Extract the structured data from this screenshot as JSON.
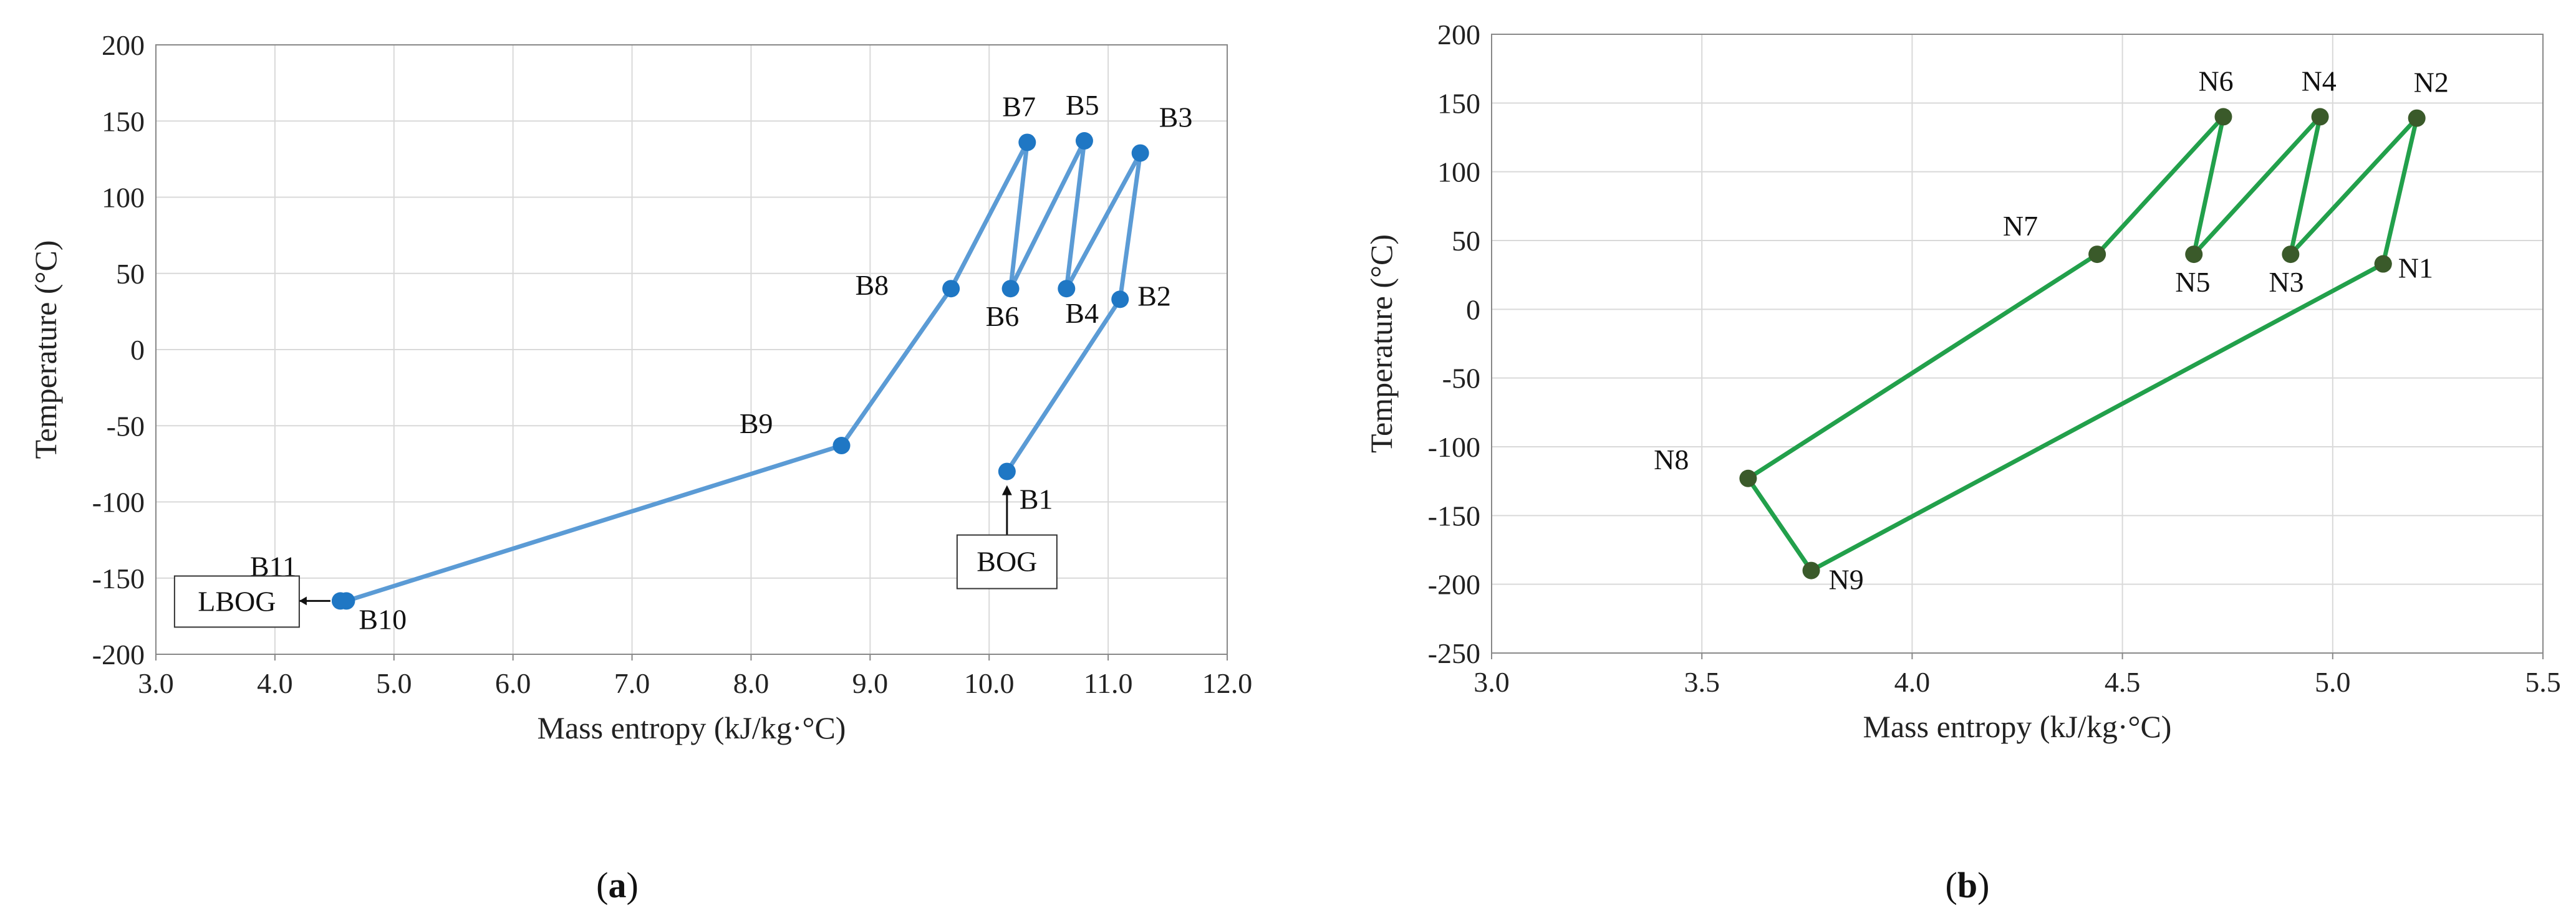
{
  "colors": {
    "panel_a": "#5b9bd5",
    "panel_a_marker": "#1f77c4",
    "panel_b": "#22a04b",
    "panel_b_marker": "#3a5a2a",
    "grid": "#d9d9d9",
    "axis": "#888888"
  },
  "chart_data": [
    {
      "type": "line",
      "caption": "(a)",
      "xlabel": "Mass entropy (kJ/kg·°C)",
      "ylabel": "Temperature (°C)",
      "xlim": [
        3.0,
        12.0
      ],
      "ylim": [
        -200,
        200
      ],
      "xticks": [
        "3.0",
        "4.0",
        "5.0",
        "6.0",
        "7.0",
        "8.0",
        "9.0",
        "10.0",
        "11.0",
        "12.0"
      ],
      "yticks": [
        "-200",
        "-150",
        "-100",
        "-50",
        "0",
        "50",
        "100",
        "150",
        "200"
      ],
      "grid": true,
      "series": [
        {
          "x": [
            10.15,
            11.1,
            11.27,
            10.65,
            10.8,
            10.18,
            10.32,
            9.68,
            8.76,
            4.6,
            4.55
          ],
          "y": [
            -80,
            33,
            129,
            40,
            137,
            40,
            136,
            40,
            -63,
            -165,
            -165
          ],
          "labels": [
            "B1",
            "B2",
            "B3",
            "B4",
            "B5",
            "B6",
            "B7",
            "B8",
            "B9",
            "B10",
            "B11"
          ]
        }
      ],
      "annotations": [
        {
          "text": "BOG",
          "x": 10.15,
          "y": -138
        },
        {
          "text": "LBOG",
          "x": 3.8,
          "y": -167
        }
      ]
    },
    {
      "type": "line",
      "caption": "(b)",
      "xlabel": "Mass entropy (kJ/kg·°C)",
      "ylabel": "Temperature (°C)",
      "xlim": [
        3.0,
        5.5
      ],
      "ylim": [
        -250,
        200
      ],
      "xticks": [
        "3.0",
        "3.5",
        "4.0",
        "4.5",
        "5.0",
        "5.5"
      ],
      "yticks": [
        "-250",
        "-200",
        "-150",
        "-100",
        "-50",
        "0",
        "50",
        "100",
        "150",
        "200"
      ],
      "grid": true,
      "series": [
        {
          "x": [
            5.12,
            5.2,
            4.9,
            4.97,
            4.67,
            4.74,
            4.44,
            3.61,
            3.76,
            5.12
          ],
          "y": [
            33,
            139,
            40,
            140,
            40,
            140,
            40,
            -123,
            -190,
            33
          ],
          "labels": [
            "N1",
            "N2",
            "N3",
            "N4",
            "N5",
            "N6",
            "N7",
            "N8",
            "N9",
            ""
          ]
        }
      ]
    }
  ]
}
